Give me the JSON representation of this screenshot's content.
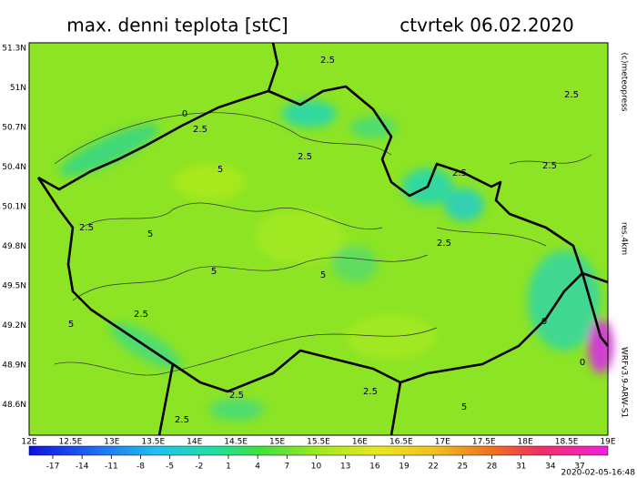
{
  "header": {
    "title": "max. denni teplota [stC]",
    "date": "ctvrtek 06.02.2020"
  },
  "map": {
    "latitude_labels": [
      "51.3N",
      "51N",
      "50.7N",
      "50.4N",
      "50.1N",
      "49.8N",
      "49.5N",
      "49.2N",
      "48.9N",
      "48.6N"
    ],
    "longitude_labels": [
      "12E",
      "12.5E",
      "13E",
      "13.5E",
      "14E",
      "14.5E",
      "15E",
      "15.5E",
      "16E",
      "16.5E",
      "17E",
      "17.5E",
      "18E",
      "18.5E",
      "19E"
    ],
    "contour_labels": [
      "2.5",
      "2.5",
      "0",
      "2.5",
      "2.5",
      "2.5",
      "2.5",
      "2.5",
      "5",
      "5",
      "5",
      "2.5",
      "2.5",
      "5",
      "2.5",
      "2.5",
      "2.5",
      "5",
      "0",
      "0",
      "5"
    ]
  },
  "colorbar": {
    "ticks": [
      -17,
      -14,
      -11,
      -8,
      -5,
      -2,
      1,
      4,
      7,
      10,
      13,
      16,
      19,
      22,
      25,
      28,
      31,
      34,
      37
    ]
  },
  "side": {
    "copyright": "(c)meteopress",
    "resolution": "res.4km",
    "model": "WRFv3.9-ARW-S1",
    "timestamp": "2020-02-05-16:48"
  }
}
